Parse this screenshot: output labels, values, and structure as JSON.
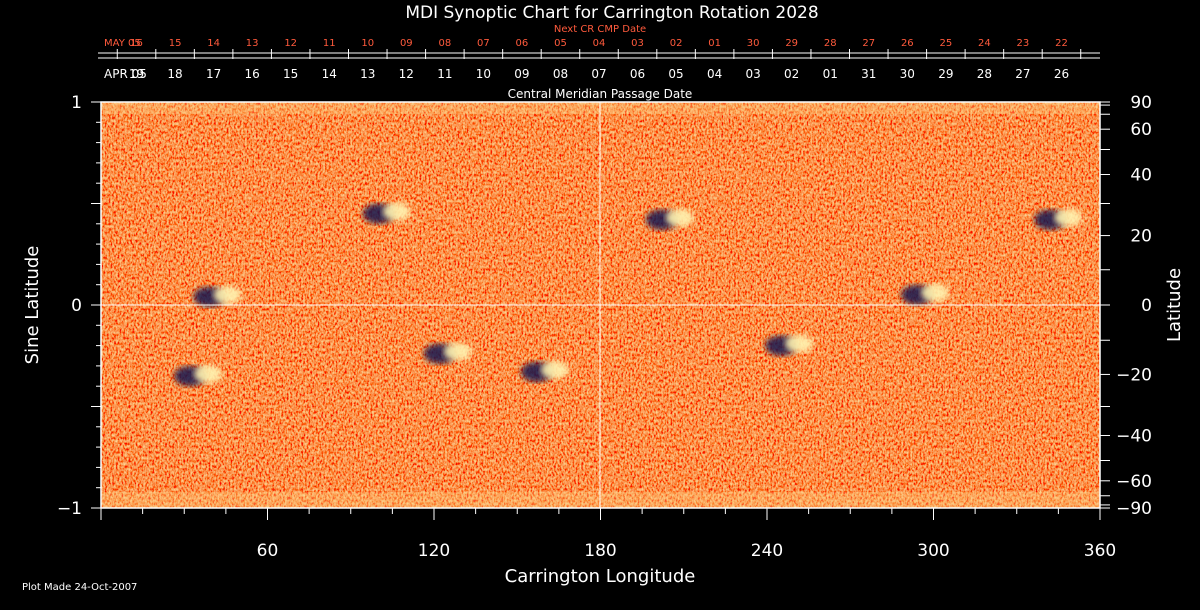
{
  "chart_data": {
    "type": "heatmap",
    "title": "MDI Synoptic Chart for Carrington Rotation 2028",
    "xlabel": "Carrington Longitude",
    "ylabel_left": "Sine Latitude",
    "ylabel_right": "Latitude",
    "xlim": [
      0,
      360
    ],
    "ylim": [
      -1,
      1
    ],
    "x_ticks": [
      "60",
      "120",
      "180",
      "240",
      "300",
      "360"
    ],
    "y_ticks_left": [
      "1",
      "0",
      "−1"
    ],
    "y_ticks_right": [
      "90",
      "60",
      "40",
      "20",
      "0",
      "−20",
      "−40",
      "−60",
      "−90"
    ],
    "next_cr_label": "Next CR CMP Date",
    "next_cr_dates": [
      "MAY 05",
      "16",
      "15",
      "14",
      "13",
      "12",
      "11",
      "10",
      "09",
      "08",
      "07",
      "06",
      "05",
      "04",
      "03",
      "02",
      "01",
      "30",
      "29",
      "28",
      "27",
      "26",
      "25",
      "24",
      "23",
      "22"
    ],
    "cmp_label": "Central Meridian Passage Date",
    "cmp_dates": [
      "APR 05",
      "19",
      "18",
      "17",
      "16",
      "15",
      "14",
      "13",
      "12",
      "11",
      "10",
      "09",
      "08",
      "07",
      "06",
      "05",
      "04",
      "03",
      "02",
      "01",
      "31",
      "30",
      "29",
      "28",
      "27",
      "26"
    ],
    "active_regions": [
      {
        "lon": 42,
        "sinlat": 0.04,
        "polarity": "mixed"
      },
      {
        "lon": 35,
        "sinlat": -0.35,
        "polarity": "mixed"
      },
      {
        "lon": 103,
        "sinlat": 0.45,
        "polarity": "mixed"
      },
      {
        "lon": 125,
        "sinlat": -0.24,
        "polarity": "mixed"
      },
      {
        "lon": 160,
        "sinlat": -0.33,
        "polarity": "mixed"
      },
      {
        "lon": 205,
        "sinlat": 0.42,
        "polarity": "mixed"
      },
      {
        "lon": 248,
        "sinlat": -0.2,
        "polarity": "mixed"
      },
      {
        "lon": 297,
        "sinlat": 0.05,
        "polarity": "mixed"
      },
      {
        "lon": 345,
        "sinlat": 0.42,
        "polarity": "mixed"
      }
    ],
    "colormap": {
      "background": "#000000",
      "base": "#ff5a14",
      "positive": "#fff3b0",
      "negative": "#141450"
    },
    "grid": "center-lines"
  },
  "footer": "Plot Made 24-Oct-2007"
}
